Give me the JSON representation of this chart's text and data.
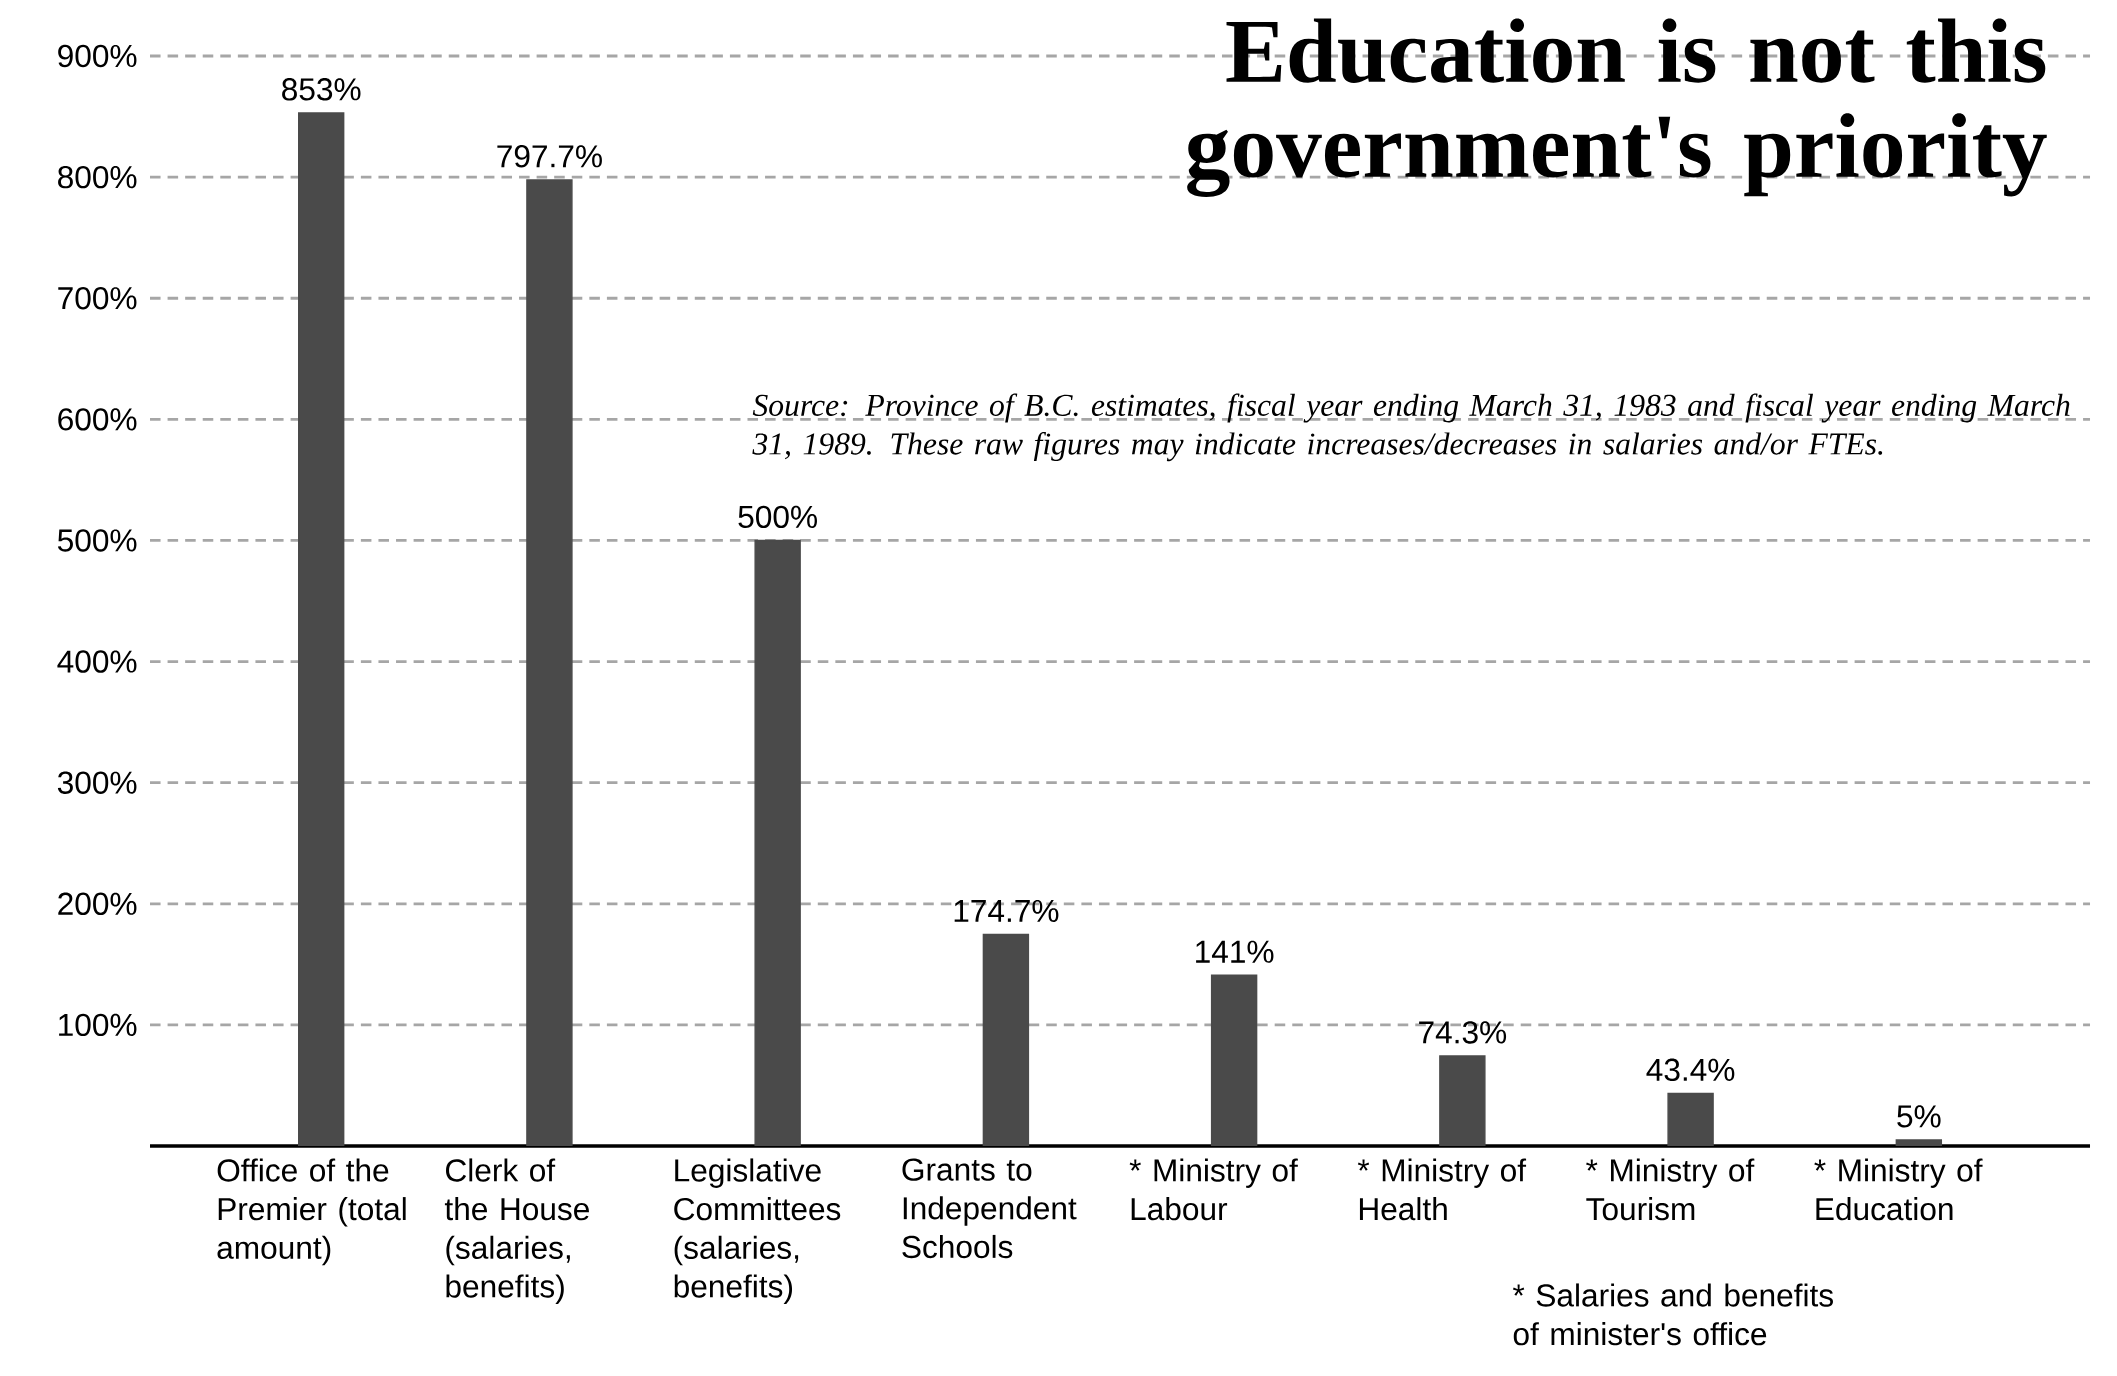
{
  "chart_data": {
    "type": "bar",
    "title": "Education is not this government's priority",
    "categories": [
      "Office of the Premier (total amount)",
      "Clerk of the House (salaries, benefits)",
      "Legislative Committees (salaries, benefits)",
      "Grants to Independent Schools",
      "* Ministry of Labour",
      "* Ministry of Health",
      "* Ministry of Tourism",
      "* Ministry of Education"
    ],
    "values": [
      853,
      797.7,
      500,
      174.7,
      141,
      74.3,
      43.4,
      5
    ],
    "value_labels": [
      "853%",
      "797.7%",
      "500%",
      "174.7%",
      "141%",
      "74.3%",
      "43.4%",
      "5%"
    ],
    "color": "#4a4a4a",
    "ylim": [
      0,
      900
    ],
    "yticks": [
      {
        "value": 100,
        "label": "100%"
      },
      {
        "value": 200,
        "label": "200%"
      },
      {
        "value": 300,
        "label": "300%"
      },
      {
        "value": 400,
        "label": "400%"
      },
      {
        "value": 500,
        "label": "500%"
      },
      {
        "value": 600,
        "label": "600%"
      },
      {
        "value": 700,
        "label": "700%"
      },
      {
        "value": 800,
        "label": "800%"
      },
      {
        "value": 900,
        "label": "900%"
      }
    ],
    "grid": "y",
    "annotations": [
      "Source: Province of B.C. estimates, fiscal year ending March 31, 1983 and fiscal year ending March 31, 1989. These raw figures may indicate increases/decreases in salaries and/or FTEs.",
      "* Salaries and benefits of minister's office"
    ]
  }
}
